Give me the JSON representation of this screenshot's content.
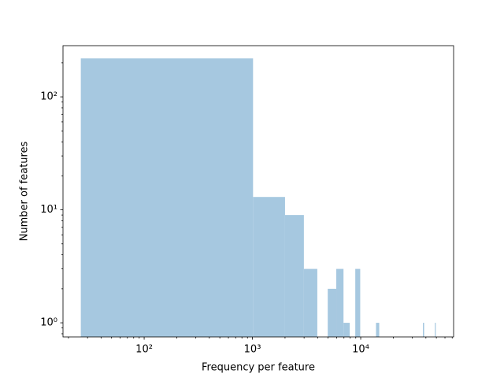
{
  "chart_data": {
    "type": "histogram",
    "xlabel": "Frequency per feature",
    "ylabel": "Number of features",
    "bins": [
      26,
      1013,
      2000,
      2987,
      3974,
      4961,
      5948,
      6935,
      7922,
      8909,
      9896,
      10883,
      11870,
      12857,
      13844,
      14831,
      15818,
      16805,
      17792,
      18779,
      19766,
      20753,
      21740,
      22727,
      23714,
      24701,
      25688,
      26675,
      27662,
      28649,
      29636,
      30623,
      31610,
      32597,
      33584,
      34571,
      35558,
      36545,
      37532,
      38519,
      39506,
      40493,
      41480,
      42467,
      43454,
      44441,
      45428,
      46415,
      47402,
      48389,
      49376
    ],
    "values": [
      219,
      13,
      9,
      3,
      0,
      2,
      3,
      1,
      0,
      3,
      0,
      0,
      0,
      0,
      1,
      0,
      0,
      0,
      0,
      0,
      0,
      0,
      0,
      0,
      0,
      0,
      0,
      0,
      0,
      0,
      0,
      0,
      0,
      0,
      0,
      0,
      0,
      0,
      1,
      0,
      0,
      0,
      0,
      0,
      0,
      0,
      0,
      0,
      0,
      1
    ],
    "color": "#a6c8e0",
    "xscale": "log",
    "yscale": "log",
    "xlim": [
      17.8,
      72100
    ],
    "ylim": [
      0.75,
      284
    ],
    "xticks": [
      {
        "value": 100,
        "label": "10²"
      },
      {
        "value": 1000,
        "label": "10³"
      },
      {
        "value": 10000,
        "label": "10⁴"
      }
    ],
    "yticks": [
      {
        "value": 1,
        "label": "10⁰"
      },
      {
        "value": 10,
        "label": "10¹"
      },
      {
        "value": 100,
        "label": "10²"
      }
    ],
    "xminorticks": [
      20,
      30,
      40,
      50,
      60,
      70,
      80,
      90,
      200,
      300,
      400,
      500,
      600,
      700,
      800,
      900,
      2000,
      3000,
      4000,
      5000,
      6000,
      7000,
      8000,
      9000,
      20000,
      30000,
      40000,
      50000,
      60000,
      70000
    ],
    "yminorticks": [
      0.8,
      0.9,
      2,
      3,
      4,
      5,
      6,
      7,
      8,
      9,
      20,
      30,
      40,
      50,
      60,
      70,
      80,
      90,
      200
    ]
  }
}
